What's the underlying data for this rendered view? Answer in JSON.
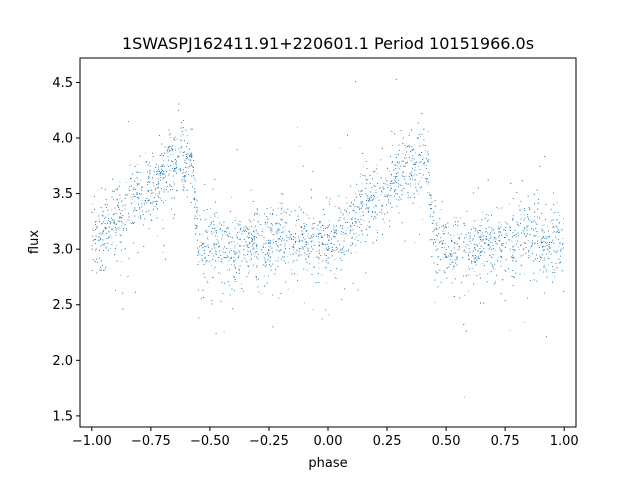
{
  "chart_data": {
    "type": "scatter",
    "title": "1SWASPJ162411.91+220601.1 Period 10151966.0s",
    "xlabel": "phase",
    "ylabel": "flux",
    "xlim": [
      -1.05,
      1.05
    ],
    "ylim": [
      1.4,
      4.72
    ],
    "x_ticks": [
      -1.0,
      -0.75,
      -0.5,
      -0.25,
      0.0,
      0.25,
      0.5,
      0.75,
      1.0
    ],
    "x_tick_labels": [
      "−1.00",
      "−0.75",
      "−0.50",
      "−0.25",
      "0.00",
      "0.25",
      "0.50",
      "0.75",
      "1.00"
    ],
    "y_ticks": [
      1.5,
      2.0,
      2.5,
      3.0,
      3.5,
      4.0,
      4.5
    ],
    "y_tick_labels": [
      "1.5",
      "2.0",
      "2.5",
      "3.0",
      "3.5",
      "4.0",
      "4.5"
    ],
    "grid": false,
    "legend": "none",
    "marker_color": "#1f77b4",
    "phase_profile": [
      {
        "x": 0.0,
        "y": 3.1
      },
      {
        "x": 0.05,
        "y": 3.15
      },
      {
        "x": 0.1,
        "y": 3.25
      },
      {
        "x": 0.15,
        "y": 3.4
      },
      {
        "x": 0.2,
        "y": 3.5
      },
      {
        "x": 0.25,
        "y": 3.55
      },
      {
        "x": 0.3,
        "y": 3.7
      },
      {
        "x": 0.35,
        "y": 3.75
      },
      {
        "x": 0.4,
        "y": 3.8
      },
      {
        "x": 0.42,
        "y": 3.85
      },
      {
        "x": 0.45,
        "y": 3.05
      },
      {
        "x": 0.5,
        "y": 3.05
      },
      {
        "x": 0.55,
        "y": 3.0
      },
      {
        "x": 0.6,
        "y": 3.0
      },
      {
        "x": 0.65,
        "y": 3.05
      },
      {
        "x": 0.7,
        "y": 3.05
      },
      {
        "x": 0.75,
        "y": 3.05
      },
      {
        "x": 0.8,
        "y": 3.1
      },
      {
        "x": 0.85,
        "y": 3.1
      },
      {
        "x": 0.9,
        "y": 3.1
      },
      {
        "x": 0.95,
        "y": 3.05
      },
      {
        "x": 1.0,
        "y": 3.1
      }
    ],
    "scatter_sigma": 0.15,
    "point_count": 7000
  }
}
